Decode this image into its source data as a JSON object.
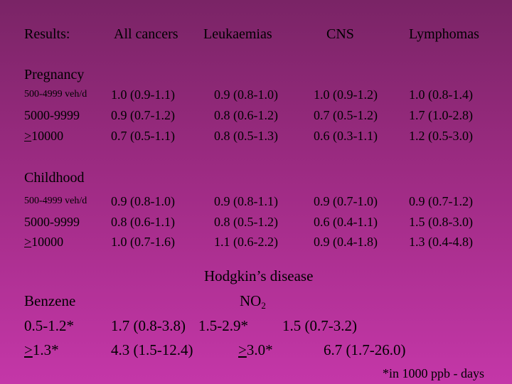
{
  "header": {
    "results": "Results:",
    "all_cancers": "All cancers",
    "leukaemias": "Leukaemias",
    "cns": "CNS",
    "lymphomas": "Lymphomas"
  },
  "pregnancy": {
    "title": "Pregnancy",
    "rows": [
      {
        "label": "500-4999 veh/d",
        "all": "1.0 (0.9-1.1)",
        "leuk": "0.9 (0.8-1.0)",
        "cns": "1.0 (0.9-1.2)",
        "lymph": "1.0 (0.8-1.4)"
      },
      {
        "label": "5000-9999",
        "all": "0.9 (0.7-1.2)",
        "leuk": "0.8 (0.6-1.2)",
        "cns": "0.7 (0.5-1.2)",
        "lymph": "1.7 (1.0-2.8)"
      },
      {
        "label_sym": ">",
        "label_rest": "10000",
        "all": "0.7 (0.5-1.1)",
        "leuk": "0.8 (0.5-1.3)",
        "cns": "0.6 (0.3-1.1)",
        "lymph": "1.2 (0.5-3.0)"
      }
    ]
  },
  "childhood": {
    "title": "Childhood",
    "rows": [
      {
        "label": "500-4999 veh/d",
        "all": "0.9 (0.8-1.0)",
        "leuk": "0.9 (0.8-1.1)",
        "cns": "0.9 (0.7-1.0)",
        "lymph": "0.9 (0.7-1.2)"
      },
      {
        "label": "5000-9999",
        "all": "0.8 (0.6-1.1)",
        "leuk": "0.8 (0.5-1.2)",
        "cns": "0.6 (0.4-1.1)",
        "lymph": "1.5 (0.8-3.0)"
      },
      {
        "label_sym": ">",
        "label_rest": "10000",
        "all": "1.0 (0.7-1.6)",
        "leuk": "1.1 (0.6-2.2)",
        "cns": "0.9 (0.4-1.8)",
        "lymph": "1.3 (0.4-4.8)"
      }
    ]
  },
  "hodgkin": {
    "title": "Hodgkin’s disease",
    "benzene": "Benzene",
    "no2_base": "NO",
    "no2_sub": "2",
    "row1": {
      "label": "0.5-1.2*",
      "a": "1.7 (0.8-3.8)",
      "b": "1.5-2.9*",
      "c": "1.5 (0.7-3.2)"
    },
    "row2": {
      "label_sym": ">",
      "label_rest": "1.3*",
      "a": "4.3 (1.5-12.4)",
      "b_sym": ">",
      "b_rest": "3.0*",
      "c": "6.7 (1.7-26.0)"
    }
  },
  "footnote": "*in 1000 ppb - days"
}
